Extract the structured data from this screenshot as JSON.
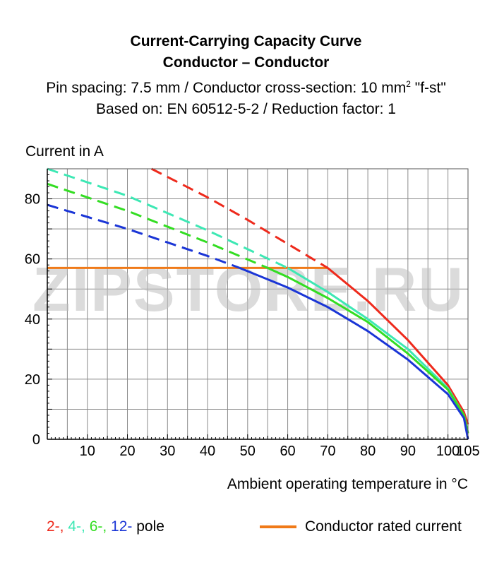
{
  "header": {
    "title_line1": "Current-Carrying Capacity Curve",
    "title_line2": "Conductor – Conductor",
    "subtitle_line1_a": "Pin spacing: 7.5 mm / Conductor cross-section: 10 mm",
    "subtitle_line1_sup": "2",
    "subtitle_line1_b": " \"f-st\"",
    "subtitle_line2": "Based on: EN 60512-5-2 / Reduction factor: 1"
  },
  "watermark": {
    "text": "ZIPSTORE.RU"
  },
  "legend": {
    "pole_items": [
      {
        "text": "2-,",
        "color": "#ee2a1c"
      },
      {
        "text": " 4-,",
        "color": "#3de8b4"
      },
      {
        "text": " 6-,",
        "color": "#33dd22"
      },
      {
        "text": " 12-",
        "color": "#1a35d6"
      }
    ],
    "pole_suffix": " pole",
    "rated_label": "Conductor rated current",
    "rated_color": "#f07a18"
  },
  "chart_data": {
    "type": "line",
    "ylabel": "Current in A",
    "xlabel": "Ambient operating temperature in °C",
    "xlim": [
      0,
      105
    ],
    "ylim": [
      0,
      90
    ],
    "x_ticks": [
      10,
      20,
      30,
      40,
      50,
      60,
      70,
      80,
      90,
      100,
      105
    ],
    "y_ticks": [
      0,
      20,
      40,
      60,
      80
    ],
    "grid": true,
    "rated_current": {
      "value": 57,
      "x_range": [
        0,
        70
      ],
      "color": "#f07a18"
    },
    "series": [
      {
        "name": "2-pole",
        "color": "#ee2a1c",
        "dashed": {
          "x": [
            26,
            40,
            50,
            60,
            70
          ],
          "y": [
            90,
            80.5,
            73,
            65,
            57
          ]
        },
        "solid": {
          "x": [
            70,
            80,
            90,
            100,
            104,
            105
          ],
          "y": [
            57,
            46,
            33,
            18,
            9,
            5
          ]
        }
      },
      {
        "name": "4-pole",
        "color": "#3de8b4",
        "dashed": {
          "x": [
            0,
            20,
            40,
            60
          ],
          "y": [
            90,
            81,
            69.5,
            57
          ]
        },
        "solid": {
          "x": [
            60,
            70,
            80,
            90,
            100,
            104,
            105
          ],
          "y": [
            57,
            49,
            40,
            30,
            17,
            8,
            2
          ]
        }
      },
      {
        "name": "6-pole",
        "color": "#33dd22",
        "dashed": {
          "x": [
            0,
            20,
            40,
            55
          ],
          "y": [
            85,
            76,
            65.5,
            57
          ]
        },
        "solid": {
          "x": [
            55,
            60,
            70,
            80,
            90,
            100,
            104,
            105
          ],
          "y": [
            57,
            54,
            47,
            39,
            28.5,
            16.5,
            8,
            2
          ]
        }
      },
      {
        "name": "12-pole",
        "color": "#1a35d6",
        "dashed": {
          "x": [
            0,
            20,
            40,
            48
          ],
          "y": [
            78,
            70,
            61,
            57
          ]
        },
        "solid": {
          "x": [
            48,
            60,
            70,
            80,
            90,
            100,
            104,
            105
          ],
          "y": [
            57,
            50.5,
            44,
            36,
            26.5,
            15,
            7,
            0
          ]
        }
      }
    ]
  }
}
